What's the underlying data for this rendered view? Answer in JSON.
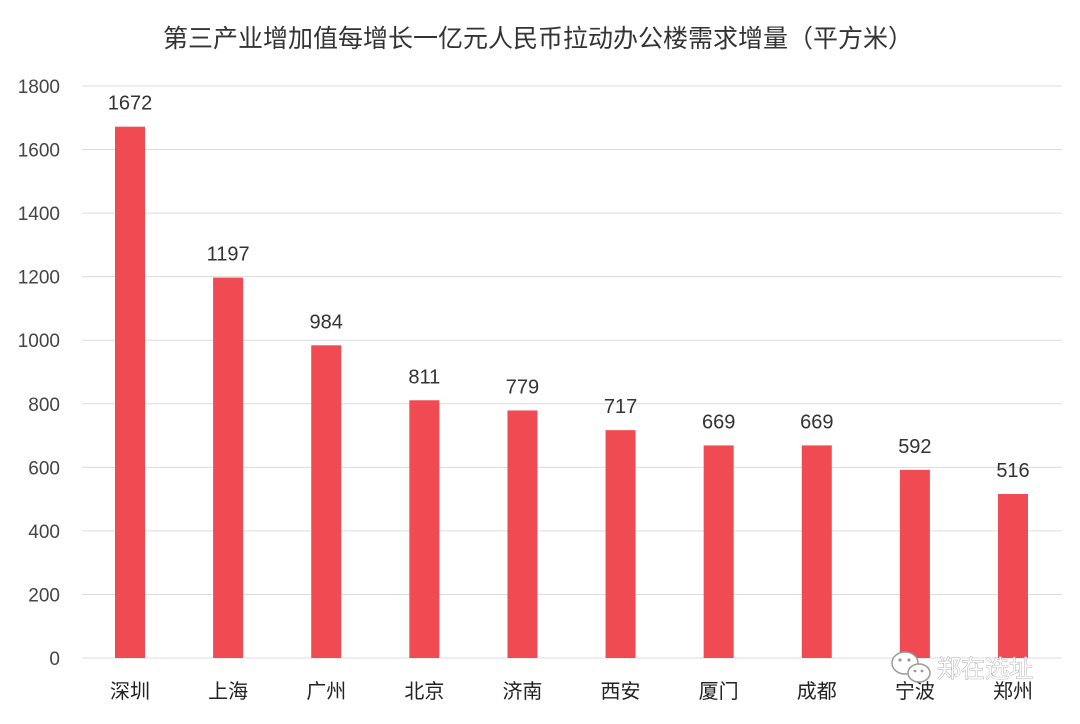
{
  "chart_data": {
    "type": "bar",
    "title": "第三产业增加值每增长一亿元人民币拉动办公楼需求增量（平方米）",
    "xlabel": "",
    "ylabel": "",
    "categories": [
      "深圳",
      "上海",
      "广州",
      "北京",
      "济南",
      "西安",
      "厦门",
      "成都",
      "宁波",
      "郑州"
    ],
    "values": [
      1672,
      1197,
      984,
      811,
      779,
      717,
      669,
      669,
      592,
      516
    ],
    "ylim": [
      0,
      1800
    ],
    "yticks": [
      0,
      200,
      400,
      600,
      800,
      1000,
      1200,
      1400,
      1600,
      1800
    ],
    "grid": true,
    "bar_color": "#f04a52",
    "data_labels": true
  },
  "watermark": {
    "text": "郑在选址",
    "icon": "wechat-icon"
  }
}
